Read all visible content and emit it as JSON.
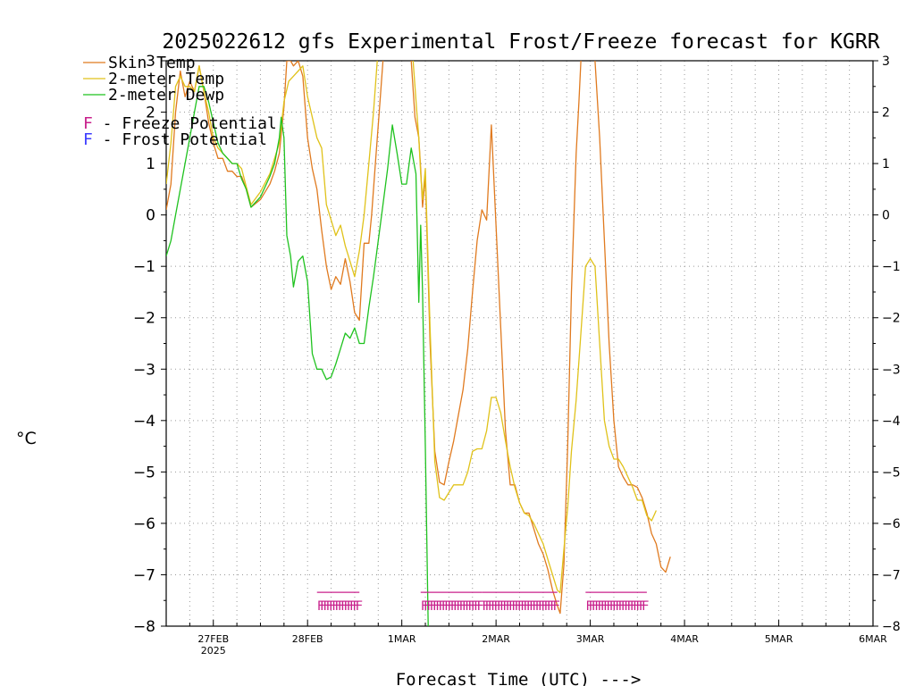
{
  "chart_data": {
    "type": "line",
    "title": "2025022612 gfs Experimental Frost/Freeze forecast for KGRR",
    "xlabel": "Forecast Time (UTC) --->",
    "ylabel": "°C",
    "x_ticks": [
      {
        "x": 27.0,
        "label": "27FEB",
        "sublabel": "2025"
      },
      {
        "x": 28.0,
        "label": "28FEB"
      },
      {
        "x": 29.0,
        "label": "1MAR"
      },
      {
        "x": 30.0,
        "label": "2MAR"
      },
      {
        "x": 31.0,
        "label": "3MAR"
      },
      {
        "x": 32.0,
        "label": "4MAR"
      },
      {
        "x": 33.0,
        "label": "5MAR"
      },
      {
        "x": 34.0,
        "label": "6MAR"
      }
    ],
    "xlim": [
      26.5,
      34.0
    ],
    "ylim": [
      -8,
      3
    ],
    "y_ticks": [
      3,
      2,
      1,
      0,
      -1,
      -2,
      -3,
      -4,
      -5,
      -6,
      -7,
      -8
    ],
    "grid": true,
    "legend_placement": "top-left",
    "series": [
      {
        "name": "Skin Temp",
        "color": "#e07a1f",
        "points": [
          [
            26.5,
            0.1
          ],
          [
            26.55,
            0.6
          ],
          [
            26.6,
            2.0
          ],
          [
            26.65,
            2.8
          ],
          [
            26.7,
            2.3
          ],
          [
            26.75,
            2.6
          ],
          [
            26.8,
            2.4
          ],
          [
            26.85,
            2.9
          ],
          [
            26.9,
            2.4
          ],
          [
            26.95,
            1.8
          ],
          [
            27.0,
            1.4
          ],
          [
            27.05,
            1.1
          ],
          [
            27.1,
            1.1
          ],
          [
            27.15,
            0.85
          ],
          [
            27.2,
            0.85
          ],
          [
            27.25,
            0.75
          ],
          [
            27.3,
            0.75
          ],
          [
            27.35,
            0.5
          ],
          [
            27.4,
            0.15
          ],
          [
            27.5,
            0.3
          ],
          [
            27.6,
            0.6
          ],
          [
            27.65,
            0.85
          ],
          [
            27.7,
            1.2
          ],
          [
            27.75,
            2.1
          ],
          [
            27.78,
            3.0
          ],
          [
            27.82,
            3.0
          ],
          [
            27.85,
            2.9
          ],
          [
            27.9,
            3.0
          ],
          [
            27.95,
            2.7
          ],
          [
            28.0,
            1.5
          ],
          [
            28.05,
            0.9
          ],
          [
            28.1,
            0.5
          ],
          [
            28.15,
            -0.3
          ],
          [
            28.2,
            -1.0
          ],
          [
            28.25,
            -1.45
          ],
          [
            28.3,
            -1.2
          ],
          [
            28.35,
            -1.35
          ],
          [
            28.4,
            -0.85
          ],
          [
            28.45,
            -1.3
          ],
          [
            28.5,
            -1.9
          ],
          [
            28.55,
            -2.05
          ],
          [
            28.6,
            -0.55
          ],
          [
            28.65,
            -0.55
          ],
          [
            28.68,
            0.0
          ],
          [
            28.72,
            1.0
          ],
          [
            28.76,
            2.0
          ],
          [
            28.8,
            3.0
          ]
        ]
      },
      {
        "name": "Skin Temp",
        "color": "#e07a1f",
        "points": [
          [
            29.1,
            3.0
          ],
          [
            29.14,
            1.9
          ],
          [
            29.18,
            1.5
          ],
          [
            29.2,
            0.9
          ],
          [
            29.22,
            0.15
          ],
          [
            29.25,
            0.75
          ],
          [
            29.3,
            -2.5
          ],
          [
            29.35,
            -4.6
          ],
          [
            29.4,
            -5.2
          ],
          [
            29.45,
            -5.25
          ],
          [
            29.5,
            -4.8
          ],
          [
            29.55,
            -4.4
          ],
          [
            29.6,
            -3.9
          ],
          [
            29.65,
            -3.4
          ],
          [
            29.7,
            -2.6
          ],
          [
            29.75,
            -1.5
          ],
          [
            29.8,
            -0.5
          ],
          [
            29.85,
            0.1
          ],
          [
            29.9,
            -0.1
          ],
          [
            29.95,
            1.75
          ],
          [
            30.0,
            -0.2
          ],
          [
            30.05,
            -2.2
          ],
          [
            30.1,
            -4.2
          ],
          [
            30.15,
            -5.25
          ],
          [
            30.2,
            -5.25
          ],
          [
            30.25,
            -5.6
          ],
          [
            30.3,
            -5.8
          ],
          [
            30.35,
            -5.8
          ],
          [
            30.4,
            -6.1
          ],
          [
            30.45,
            -6.4
          ],
          [
            30.5,
            -6.6
          ],
          [
            30.55,
            -6.9
          ],
          [
            30.6,
            -7.3
          ],
          [
            30.65,
            -7.6
          ],
          [
            30.68,
            -7.75
          ],
          [
            30.72,
            -6.8
          ],
          [
            30.76,
            -4.5
          ],
          [
            30.8,
            -1.5
          ],
          [
            30.85,
            1.2
          ],
          [
            30.88,
            2.2
          ],
          [
            30.9,
            3.0
          ]
        ]
      },
      {
        "name": "Skin Temp",
        "color": "#e07a1f",
        "points": [
          [
            31.05,
            3.0
          ],
          [
            31.1,
            1.5
          ],
          [
            31.15,
            -0.5
          ],
          [
            31.2,
            -2.5
          ],
          [
            31.25,
            -4.0
          ],
          [
            31.3,
            -4.9
          ],
          [
            31.35,
            -5.1
          ],
          [
            31.4,
            -5.25
          ],
          [
            31.45,
            -5.25
          ],
          [
            31.5,
            -5.3
          ],
          [
            31.55,
            -5.5
          ],
          [
            31.6,
            -5.8
          ],
          [
            31.65,
            -6.2
          ],
          [
            31.7,
            -6.4
          ],
          [
            31.75,
            -6.85
          ],
          [
            31.8,
            -6.95
          ],
          [
            31.85,
            -6.65
          ]
        ]
      },
      {
        "name": "2-meter Temp",
        "color": "#e0c21a",
        "points": [
          [
            26.5,
            0.6
          ],
          [
            26.55,
            1.4
          ],
          [
            26.6,
            2.5
          ],
          [
            26.65,
            2.7
          ],
          [
            26.7,
            2.5
          ],
          [
            26.75,
            2.5
          ],
          [
            26.8,
            2.4
          ],
          [
            26.85,
            2.9
          ],
          [
            26.9,
            2.4
          ],
          [
            26.95,
            2.0
          ],
          [
            27.0,
            1.5
          ],
          [
            27.05,
            1.3
          ],
          [
            27.1,
            1.2
          ],
          [
            27.15,
            1.1
          ],
          [
            27.2,
            1.0
          ],
          [
            27.25,
            1.0
          ],
          [
            27.3,
            0.9
          ],
          [
            27.35,
            0.55
          ],
          [
            27.4,
            0.2
          ],
          [
            27.5,
            0.45
          ],
          [
            27.6,
            0.8
          ],
          [
            27.65,
            1.1
          ],
          [
            27.7,
            1.4
          ],
          [
            27.75,
            2.2
          ],
          [
            27.8,
            2.6
          ],
          [
            27.85,
            2.7
          ],
          [
            27.9,
            2.8
          ],
          [
            27.95,
            2.9
          ],
          [
            28.0,
            2.3
          ],
          [
            28.05,
            1.9
          ],
          [
            28.1,
            1.5
          ],
          [
            28.15,
            1.3
          ],
          [
            28.2,
            0.2
          ],
          [
            28.25,
            -0.1
          ],
          [
            28.3,
            -0.4
          ],
          [
            28.35,
            -0.2
          ],
          [
            28.4,
            -0.6
          ],
          [
            28.45,
            -0.9
          ],
          [
            28.5,
            -1.2
          ],
          [
            28.55,
            -0.7
          ],
          [
            28.6,
            0.0
          ],
          [
            28.65,
            1.0
          ],
          [
            28.7,
            2.0
          ],
          [
            28.74,
            3.0
          ]
        ]
      },
      {
        "name": "2-meter Temp",
        "color": "#e0c21a",
        "points": [
          [
            29.12,
            3.0
          ],
          [
            29.16,
            2.0
          ],
          [
            29.18,
            1.5
          ],
          [
            29.2,
            0.8
          ],
          [
            29.22,
            0.3
          ],
          [
            29.25,
            0.9
          ],
          [
            29.3,
            -2.2
          ],
          [
            29.35,
            -4.8
          ],
          [
            29.4,
            -5.5
          ],
          [
            29.45,
            -5.55
          ],
          [
            29.5,
            -5.4
          ],
          [
            29.55,
            -5.25
          ],
          [
            29.6,
            -5.25
          ],
          [
            29.65,
            -5.25
          ],
          [
            29.7,
            -5.0
          ],
          [
            29.75,
            -4.6
          ],
          [
            29.8,
            -4.55
          ],
          [
            29.85,
            -4.55
          ],
          [
            29.9,
            -4.2
          ],
          [
            29.95,
            -3.55
          ],
          [
            30.0,
            -3.55
          ],
          [
            30.05,
            -3.85
          ],
          [
            30.1,
            -4.4
          ],
          [
            30.15,
            -4.9
          ],
          [
            30.2,
            -5.3
          ],
          [
            30.25,
            -5.6
          ],
          [
            30.3,
            -5.8
          ],
          [
            30.35,
            -5.85
          ],
          [
            30.4,
            -6.0
          ],
          [
            30.45,
            -6.2
          ],
          [
            30.5,
            -6.4
          ],
          [
            30.55,
            -6.7
          ],
          [
            30.6,
            -7.0
          ],
          [
            30.65,
            -7.3
          ],
          [
            30.68,
            -7.35
          ],
          [
            30.72,
            -6.5
          ],
          [
            30.76,
            -5.7
          ],
          [
            30.8,
            -4.6
          ],
          [
            30.85,
            -3.6
          ],
          [
            30.9,
            -2.3
          ],
          [
            30.95,
            -1.0
          ],
          [
            31.0,
            -0.85
          ],
          [
            31.05,
            -1.0
          ],
          [
            31.1,
            -2.5
          ],
          [
            31.15,
            -4.0
          ],
          [
            31.2,
            -4.5
          ],
          [
            31.25,
            -4.75
          ],
          [
            31.3,
            -4.75
          ],
          [
            31.35,
            -4.9
          ],
          [
            31.4,
            -5.1
          ],
          [
            31.45,
            -5.3
          ],
          [
            31.5,
            -5.55
          ],
          [
            31.55,
            -5.55
          ],
          [
            31.6,
            -5.85
          ],
          [
            31.65,
            -5.95
          ],
          [
            31.7,
            -5.75
          ]
        ]
      },
      {
        "name": "2-meter Dewp",
        "color": "#1fc21f",
        "points": [
          [
            26.5,
            -0.8
          ],
          [
            26.55,
            -0.5
          ],
          [
            26.6,
            0.0
          ],
          [
            26.65,
            0.5
          ],
          [
            26.7,
            1.0
          ],
          [
            26.75,
            1.5
          ],
          [
            26.8,
            2.0
          ],
          [
            26.85,
            2.5
          ],
          [
            26.9,
            2.5
          ],
          [
            26.95,
            2.2
          ],
          [
            27.0,
            1.8
          ],
          [
            27.05,
            1.4
          ],
          [
            27.1,
            1.2
          ],
          [
            27.15,
            1.1
          ],
          [
            27.2,
            1.0
          ],
          [
            27.25,
            1.0
          ],
          [
            27.3,
            0.7
          ],
          [
            27.35,
            0.5
          ],
          [
            27.4,
            0.15
          ],
          [
            27.5,
            0.35
          ],
          [
            27.6,
            0.75
          ],
          [
            27.65,
            1.0
          ],
          [
            27.7,
            1.5
          ],
          [
            27.72,
            1.9
          ],
          [
            27.75,
            1.5
          ],
          [
            27.78,
            -0.4
          ],
          [
            27.82,
            -0.8
          ],
          [
            27.85,
            -1.4
          ],
          [
            27.9,
            -0.9
          ],
          [
            27.95,
            -0.8
          ],
          [
            28.0,
            -1.3
          ],
          [
            28.05,
            -2.7
          ],
          [
            28.1,
            -3.0
          ],
          [
            28.15,
            -3.0
          ],
          [
            28.2,
            -3.2
          ],
          [
            28.25,
            -3.15
          ],
          [
            28.3,
            -2.9
          ],
          [
            28.35,
            -2.6
          ],
          [
            28.4,
            -2.3
          ],
          [
            28.45,
            -2.4
          ],
          [
            28.5,
            -2.2
          ],
          [
            28.55,
            -2.5
          ],
          [
            28.6,
            -2.5
          ],
          [
            28.65,
            -1.8
          ],
          [
            28.7,
            -1.2
          ],
          [
            28.75,
            -0.5
          ],
          [
            28.8,
            0.2
          ],
          [
            28.85,
            0.9
          ],
          [
            28.9,
            1.75
          ],
          [
            28.95,
            1.2
          ],
          [
            29.0,
            0.6
          ],
          [
            29.05,
            0.6
          ],
          [
            29.1,
            1.3
          ],
          [
            29.15,
            0.8
          ],
          [
            29.18,
            -1.7
          ],
          [
            29.2,
            -0.2
          ],
          [
            29.22,
            -1.5
          ],
          [
            29.25,
            -4.5
          ],
          [
            29.28,
            -8.0
          ]
        ]
      }
    ],
    "freeze_markers": [
      {
        "x_start": 28.1,
        "x_end": 28.55,
        "y": -7.55
      },
      {
        "x_start": 29.2,
        "x_end": 29.85,
        "y": -7.55
      },
      {
        "x_start": 29.85,
        "x_end": 30.65,
        "y": -7.55
      },
      {
        "x_start": 30.95,
        "x_end": 31.6,
        "y": -7.55
      }
    ],
    "legend": [
      {
        "label": "Skin Temp",
        "color": "#e07a1f",
        "type": "line"
      },
      {
        "label": "2-meter Temp",
        "color": "#e0c21a",
        "type": "line"
      },
      {
        "label": "2-meter Dewp",
        "color": "#1fc21f",
        "type": "line"
      },
      {
        "label": "F - Freeze Potential",
        "color": "#c8208c",
        "type": "text"
      },
      {
        "label": "F - Frost Potential",
        "color": "#3c3cff",
        "type": "text"
      }
    ],
    "freeze_color": "#c8208c"
  }
}
